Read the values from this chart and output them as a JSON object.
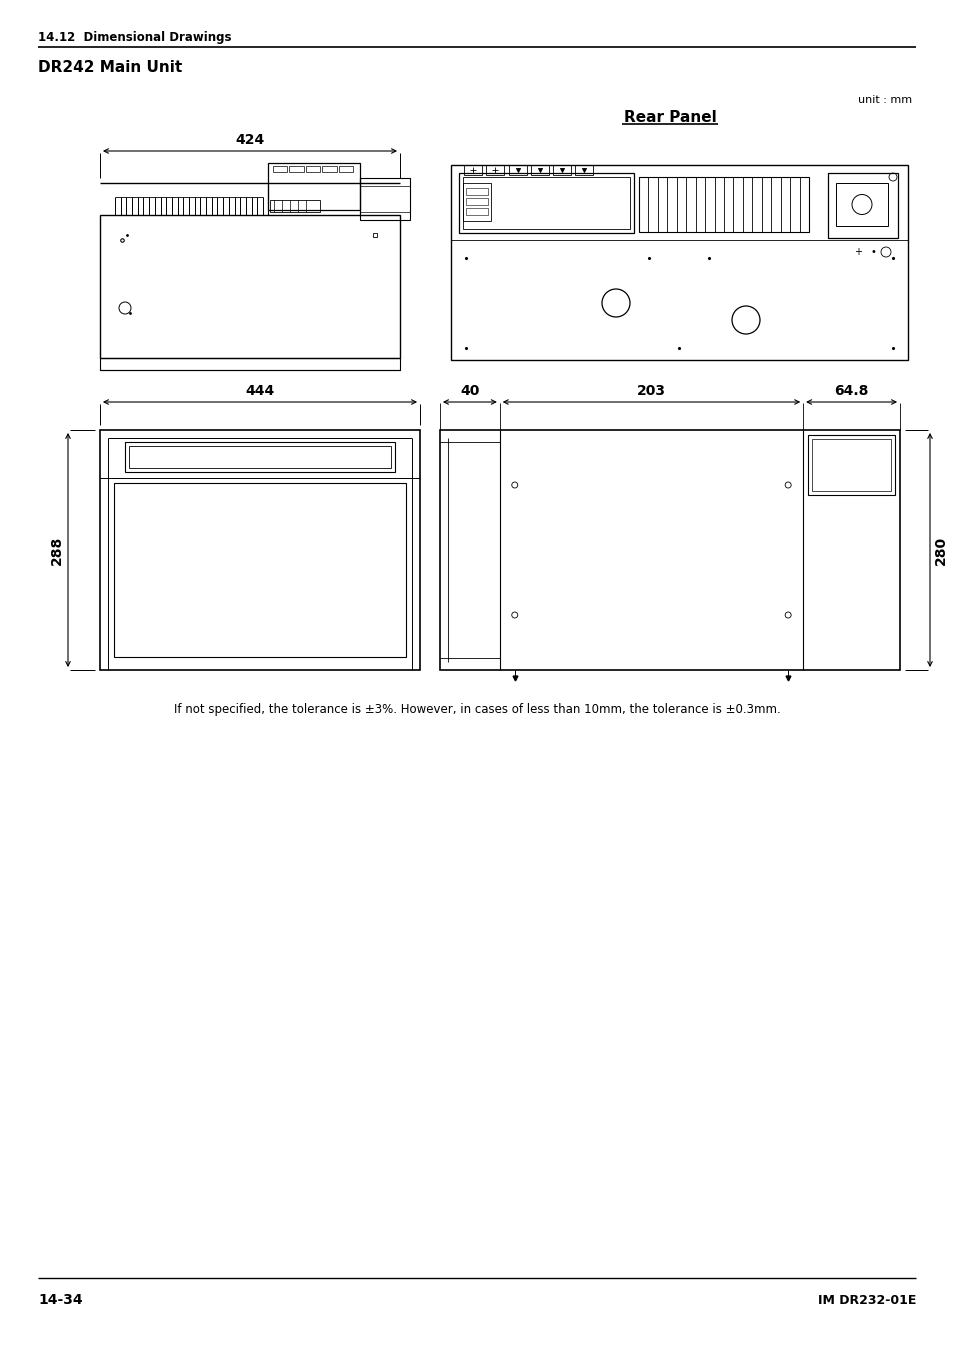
{
  "page_header": "14.12  Dimensional Drawings",
  "section_title": "DR242 Main Unit",
  "unit_label": "unit : mm",
  "rear_panel_label": "Rear Panel",
  "footer_left": "14-34",
  "footer_right": "IM DR232-01E",
  "note_text": "If not specified, the tolerance is ±3%. However, in cases of less than 10mm, the tolerance is ±0.3mm.",
  "dim_424": "424",
  "dim_444": "444",
  "dim_40": "40",
  "dim_203": "203",
  "dim_648": "64.8",
  "dim_288": "288",
  "dim_280": "280",
  "bg_color": "#ffffff",
  "line_color": "#000000"
}
